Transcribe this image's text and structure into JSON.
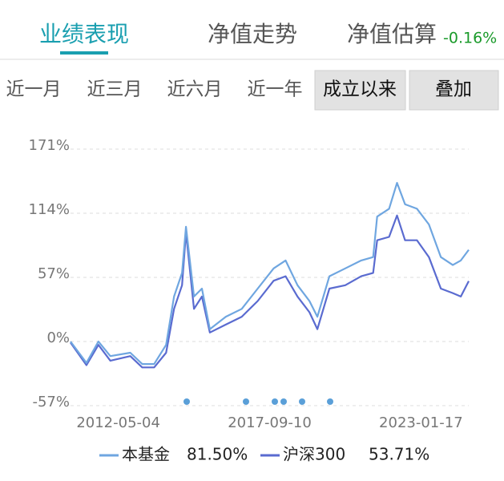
{
  "tabs": [
    "业绩表现",
    "净值走势",
    "净值估算"
  ],
  "estimate_change": "-0.16%",
  "periods": [
    "近一月",
    "近三月",
    "近六月",
    "近一年",
    "成立以来"
  ],
  "overlay_button": "叠加",
  "chart_data": {
    "type": "line",
    "x": [
      0,
      4,
      7,
      10,
      15,
      18,
      21,
      24,
      26,
      28,
      29,
      31,
      33,
      35,
      39,
      43,
      47,
      51,
      54,
      57,
      60,
      62,
      65,
      69,
      73,
      76,
      77,
      80,
      82,
      84,
      87,
      90,
      93,
      96,
      98,
      100
    ],
    "xlim": [
      0,
      100
    ],
    "xticks": [
      {
        "value": 12,
        "label": "2012-05-04"
      },
      {
        "value": 50,
        "label": "2017-09-10"
      },
      {
        "value": 88,
        "label": "2023-01-17"
      }
    ],
    "ylim": [
      -57,
      171
    ],
    "yticks": [
      {
        "value": 171,
        "label": "171%"
      },
      {
        "value": 114,
        "label": "114%"
      },
      {
        "value": 57,
        "label": "57%"
      },
      {
        "value": 0,
        "label": "0%"
      },
      {
        "value": -57,
        "label": "-57%"
      }
    ],
    "grid": true,
    "series": [
      {
        "name": "本基金",
        "legend_value": "81.50%",
        "color": "#6fa6e0",
        "values": [
          0,
          -19,
          0,
          -13,
          -10,
          -20,
          -20,
          -3,
          40,
          61,
          102,
          40,
          47,
          11,
          22,
          29,
          47,
          65,
          72,
          50,
          36,
          22,
          58,
          65,
          72,
          75,
          111,
          118,
          141,
          122,
          118,
          104,
          75,
          68,
          72,
          81.5
        ]
      },
      {
        "name": "沪深300",
        "legend_value": "53.71%",
        "color": "#5a6bd0",
        "values": [
          -1,
          -21,
          -3,
          -17,
          -13,
          -23,
          -23,
          -10,
          29,
          50,
          97,
          29,
          40,
          8,
          15,
          22,
          36,
          54,
          58,
          40,
          26,
          11,
          47,
          50,
          58,
          61,
          90,
          93,
          112,
          90,
          90,
          75,
          47,
          43,
          40,
          53.71
        ]
      }
    ]
  }
}
